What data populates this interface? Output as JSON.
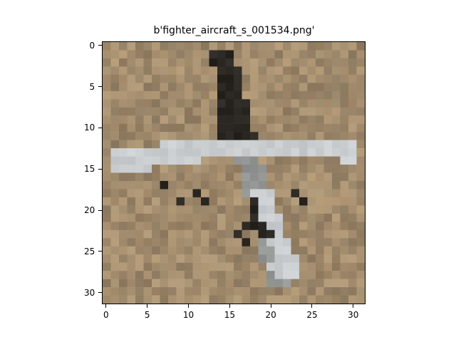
{
  "figure": {
    "title": "b'fighter_aircraft_s_001534.png'",
    "axes": {
      "x_ticks": [
        "0",
        "5",
        "10",
        "15",
        "20",
        "25",
        "30"
      ],
      "y_ticks": [
        "0",
        "5",
        "10",
        "15",
        "20",
        "25",
        "30"
      ],
      "range": [
        -0.5,
        31.5
      ]
    },
    "image": {
      "grid_size": 32,
      "background_color": "#a08a6c",
      "aircraft_light_color": "#c9cdd0",
      "aircraft_mid_color": "#8f9596",
      "aircraft_dark_color": "#2a2622",
      "description_text": ""
    }
  }
}
